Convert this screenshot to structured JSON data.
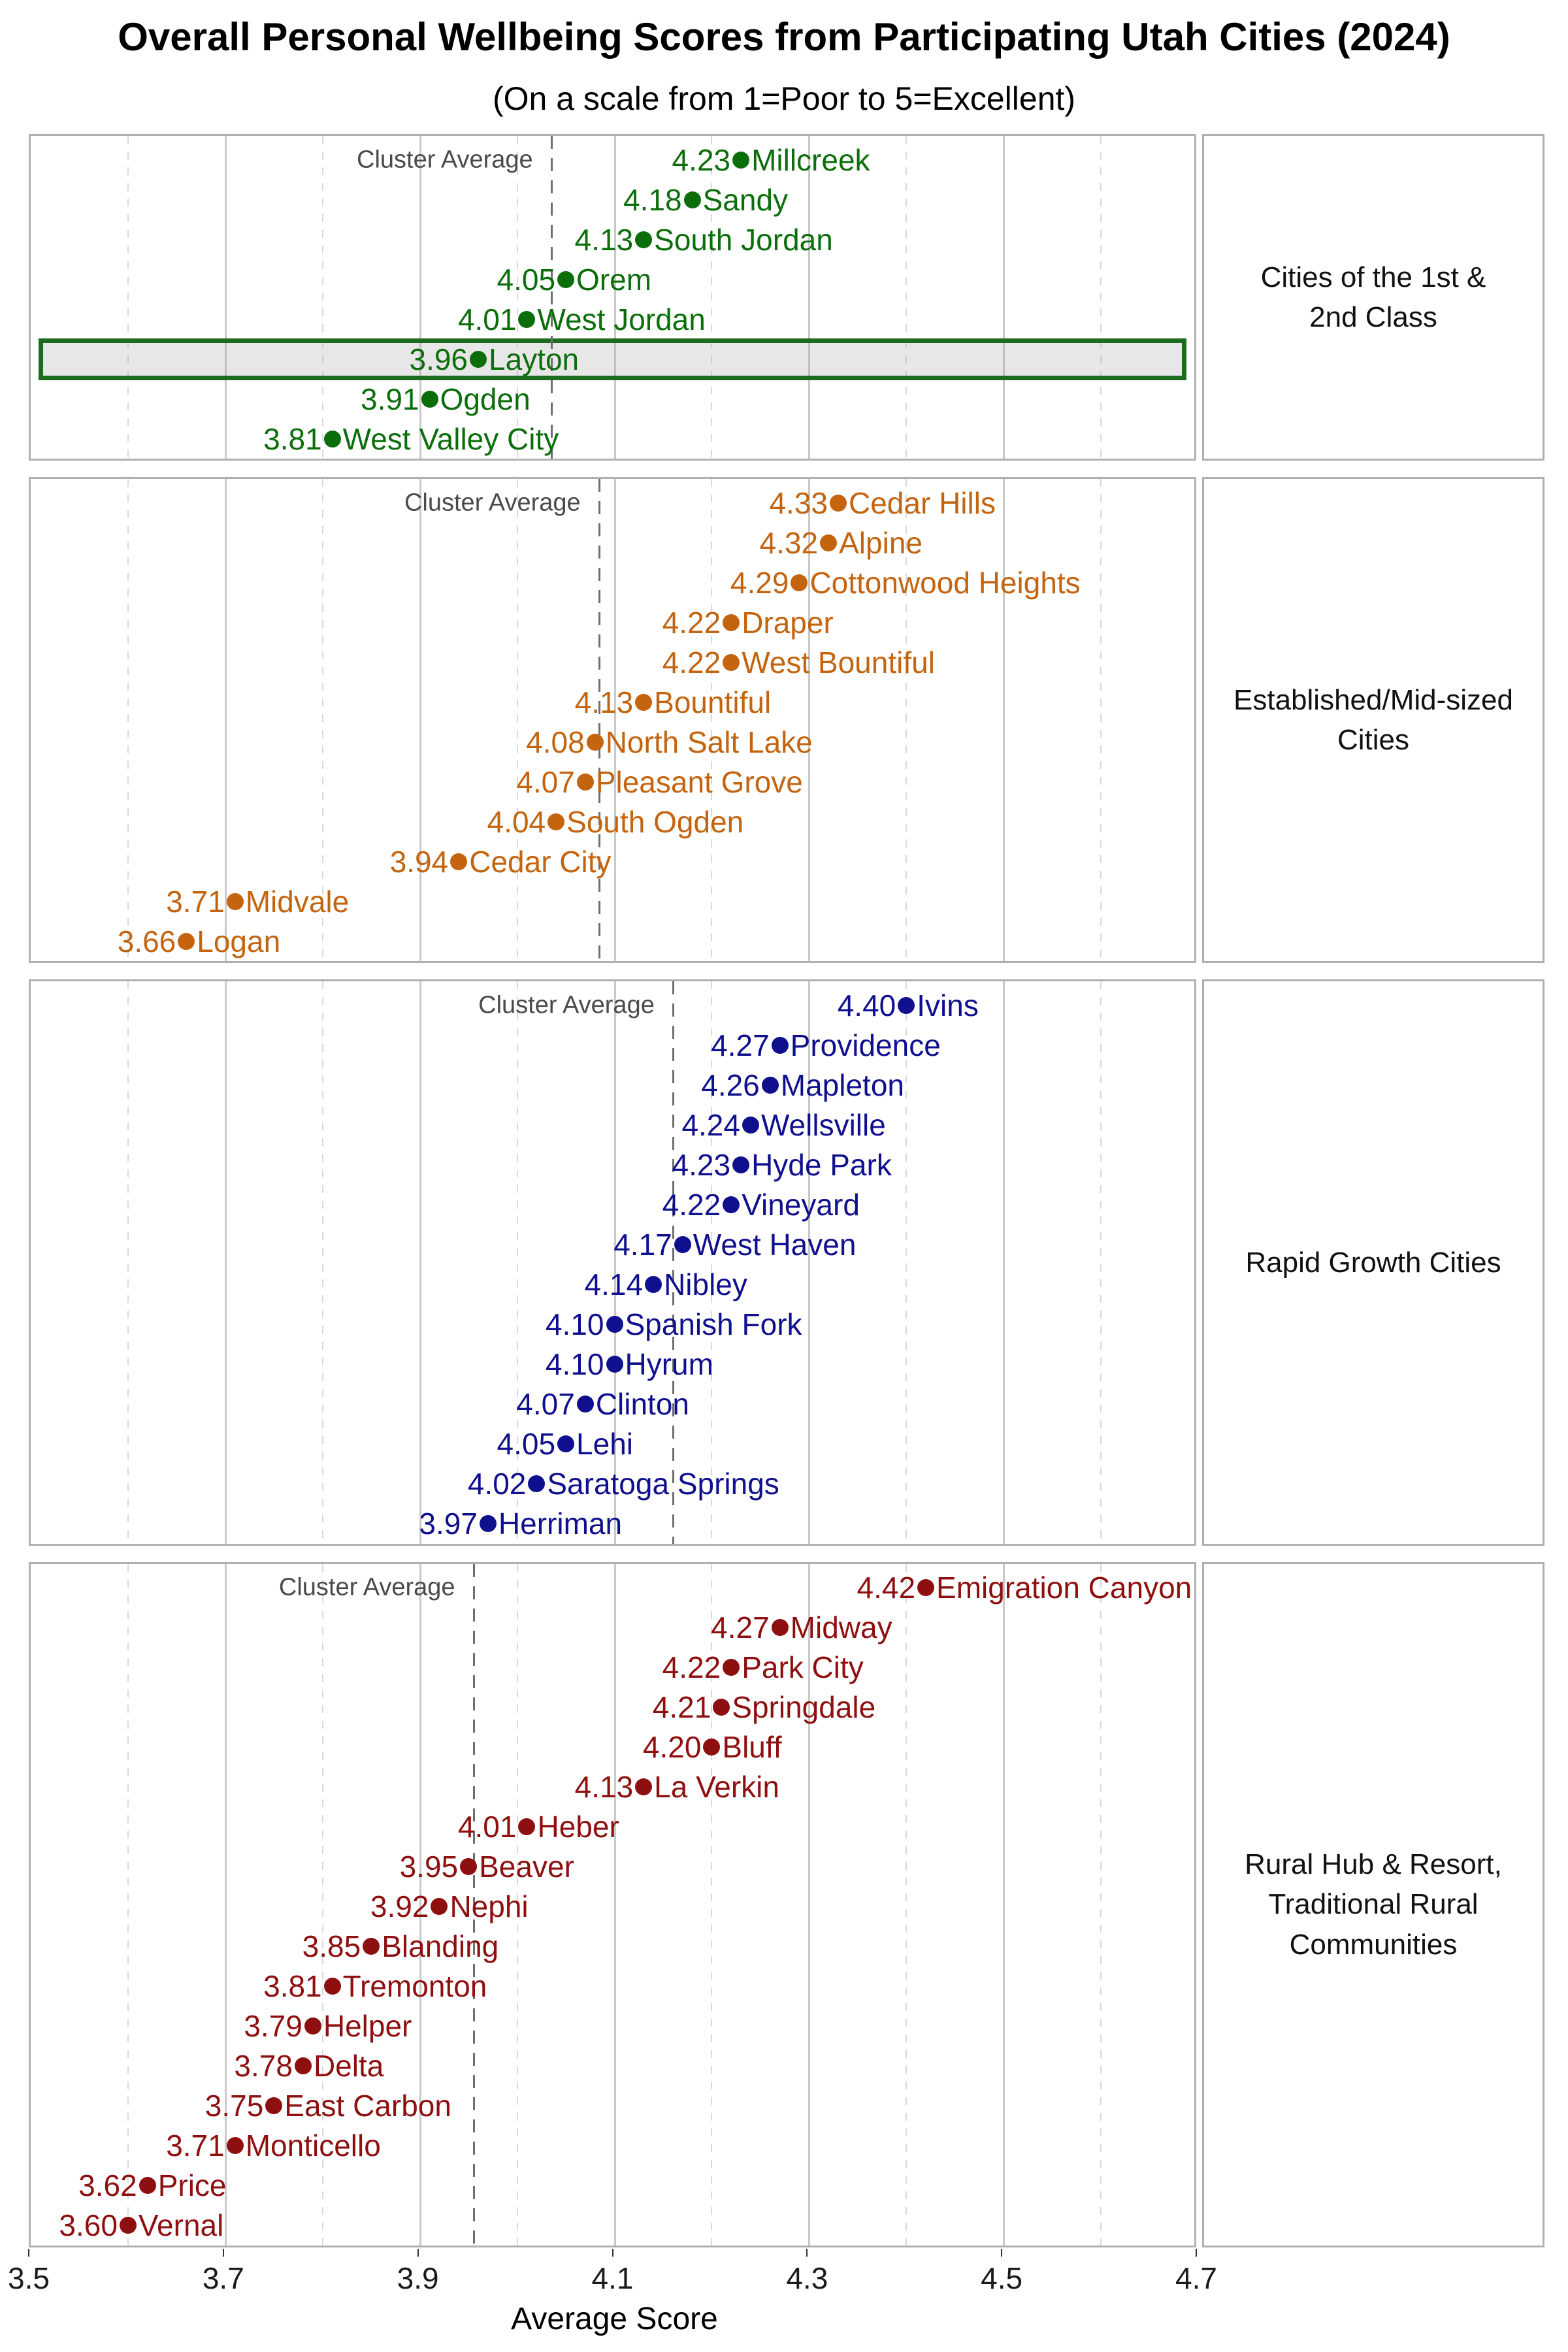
{
  "title": "Overall Personal Wellbeing Scores from Participating Utah Cities (2024)",
  "subtitle": "(On a scale from 1=Poor to 5=Excellent)",
  "cluster_average_label": "Cluster Average",
  "x_axis": {
    "title": "Average Score",
    "ticks": [
      3.5,
      3.7,
      3.9,
      4.1,
      4.3,
      4.5,
      4.7
    ],
    "min": 3.5,
    "max": 4.7
  },
  "highlight": {
    "city": "Layton",
    "facet": "Cities of the 1st & 2nd Class",
    "fill": "rgba(160,160,160,0.25)",
    "border_color": "#1d6b1d"
  },
  "style_colors": {
    "major_grid": "#c9c9c9",
    "minor_grid": "#d9d9d9",
    "panel_border": "#b0b0b0",
    "cluster_line": "#6f6f6f",
    "cluster_label": "#4a4a4a"
  },
  "chart_data": {
    "type": "scatter",
    "title": "Overall Personal Wellbeing Scores from Participating Utah Cities (2024)",
    "subtitle": "(On a scale from 1=Poor to 5=Excellent)",
    "xlabel": "Average Score",
    "xlim": [
      3.5,
      4.7
    ],
    "xticks": [
      3.5,
      3.7,
      3.9,
      4.1,
      4.3,
      4.5,
      4.7
    ],
    "grid": "major solid, minor dashed",
    "legend_position": "none",
    "facets": [
      {
        "strip": "Cities of the 1st & 2nd Class",
        "strip_lines": [
          "Cities of the 1st &",
          "2nd Class"
        ],
        "color": "#0b6e0b",
        "cluster_average": 4.035,
        "cities": [
          {
            "city": "Millcreek",
            "score": 4.23
          },
          {
            "city": "Sandy",
            "score": 4.18
          },
          {
            "city": "South Jordan",
            "score": 4.13
          },
          {
            "city": "Orem",
            "score": 4.05
          },
          {
            "city": "West Jordan",
            "score": 4.01
          },
          {
            "city": "Layton",
            "score": 3.96
          },
          {
            "city": "Ogden",
            "score": 3.91
          },
          {
            "city": "West Valley City",
            "score": 3.81
          }
        ]
      },
      {
        "strip": "Established/Mid-sized Cities",
        "strip_lines": [
          "Established/Mid-sized",
          "Cities"
        ],
        "color": "#c4640f",
        "cluster_average": 4.084,
        "cities": [
          {
            "city": "Cedar Hills",
            "score": 4.33
          },
          {
            "city": "Alpine",
            "score": 4.32
          },
          {
            "city": "Cottonwood Heights",
            "score": 4.29
          },
          {
            "city": "Draper",
            "score": 4.22
          },
          {
            "city": "West Bountiful",
            "score": 4.22
          },
          {
            "city": "Bountiful",
            "score": 4.13
          },
          {
            "city": "North Salt Lake",
            "score": 4.08
          },
          {
            "city": "Pleasant Grove",
            "score": 4.07
          },
          {
            "city": "South Ogden",
            "score": 4.04
          },
          {
            "city": "Cedar City",
            "score": 3.94
          },
          {
            "city": "Midvale",
            "score": 3.71
          },
          {
            "city": "Logan",
            "score": 3.66
          }
        ]
      },
      {
        "strip": "Rapid Growth Cities",
        "strip_lines": [
          "Rapid Growth Cities"
        ],
        "color": "#10108f",
        "cluster_average": 4.16,
        "cities": [
          {
            "city": "Ivins",
            "score": 4.4
          },
          {
            "city": "Providence",
            "score": 4.27
          },
          {
            "city": "Mapleton",
            "score": 4.26
          },
          {
            "city": "Wellsville",
            "score": 4.24
          },
          {
            "city": "Hyde Park",
            "score": 4.23
          },
          {
            "city": "Vineyard",
            "score": 4.22
          },
          {
            "city": "West Haven",
            "score": 4.17
          },
          {
            "city": "Nibley",
            "score": 4.14
          },
          {
            "city": "Spanish Fork",
            "score": 4.1
          },
          {
            "city": "Hyrum",
            "score": 4.1
          },
          {
            "city": "Clinton",
            "score": 4.07
          },
          {
            "city": "Lehi",
            "score": 4.05
          },
          {
            "city": "Saratoga Springs",
            "score": 4.02
          },
          {
            "city": "Herriman",
            "score": 3.97
          }
        ]
      },
      {
        "strip": "Rural Hub & Resort, Traditional Rural Communities",
        "strip_lines": [
          "Rural Hub & Resort,",
          "Traditional Rural",
          "Communities"
        ],
        "color": "#8e0f0f",
        "cluster_average": 3.955,
        "cities": [
          {
            "city": "Emigration Canyon",
            "score": 4.42
          },
          {
            "city": "Midway",
            "score": 4.27
          },
          {
            "city": "Park City",
            "score": 4.22
          },
          {
            "city": "Springdale",
            "score": 4.21
          },
          {
            "city": "Bluff",
            "score": 4.2
          },
          {
            "city": "La Verkin",
            "score": 4.13
          },
          {
            "city": "Heber",
            "score": 4.01
          },
          {
            "city": "Beaver",
            "score": 3.95
          },
          {
            "city": "Nephi",
            "score": 3.92
          },
          {
            "city": "Blanding",
            "score": 3.85
          },
          {
            "city": "Tremonton",
            "score": 3.81
          },
          {
            "city": "Helper",
            "score": 3.79
          },
          {
            "city": "Delta",
            "score": 3.78
          },
          {
            "city": "East Carbon",
            "score": 3.75
          },
          {
            "city": "Monticello",
            "score": 3.71
          },
          {
            "city": "Price",
            "score": 3.62
          },
          {
            "city": "Vernal",
            "score": 3.6
          }
        ]
      }
    ]
  }
}
